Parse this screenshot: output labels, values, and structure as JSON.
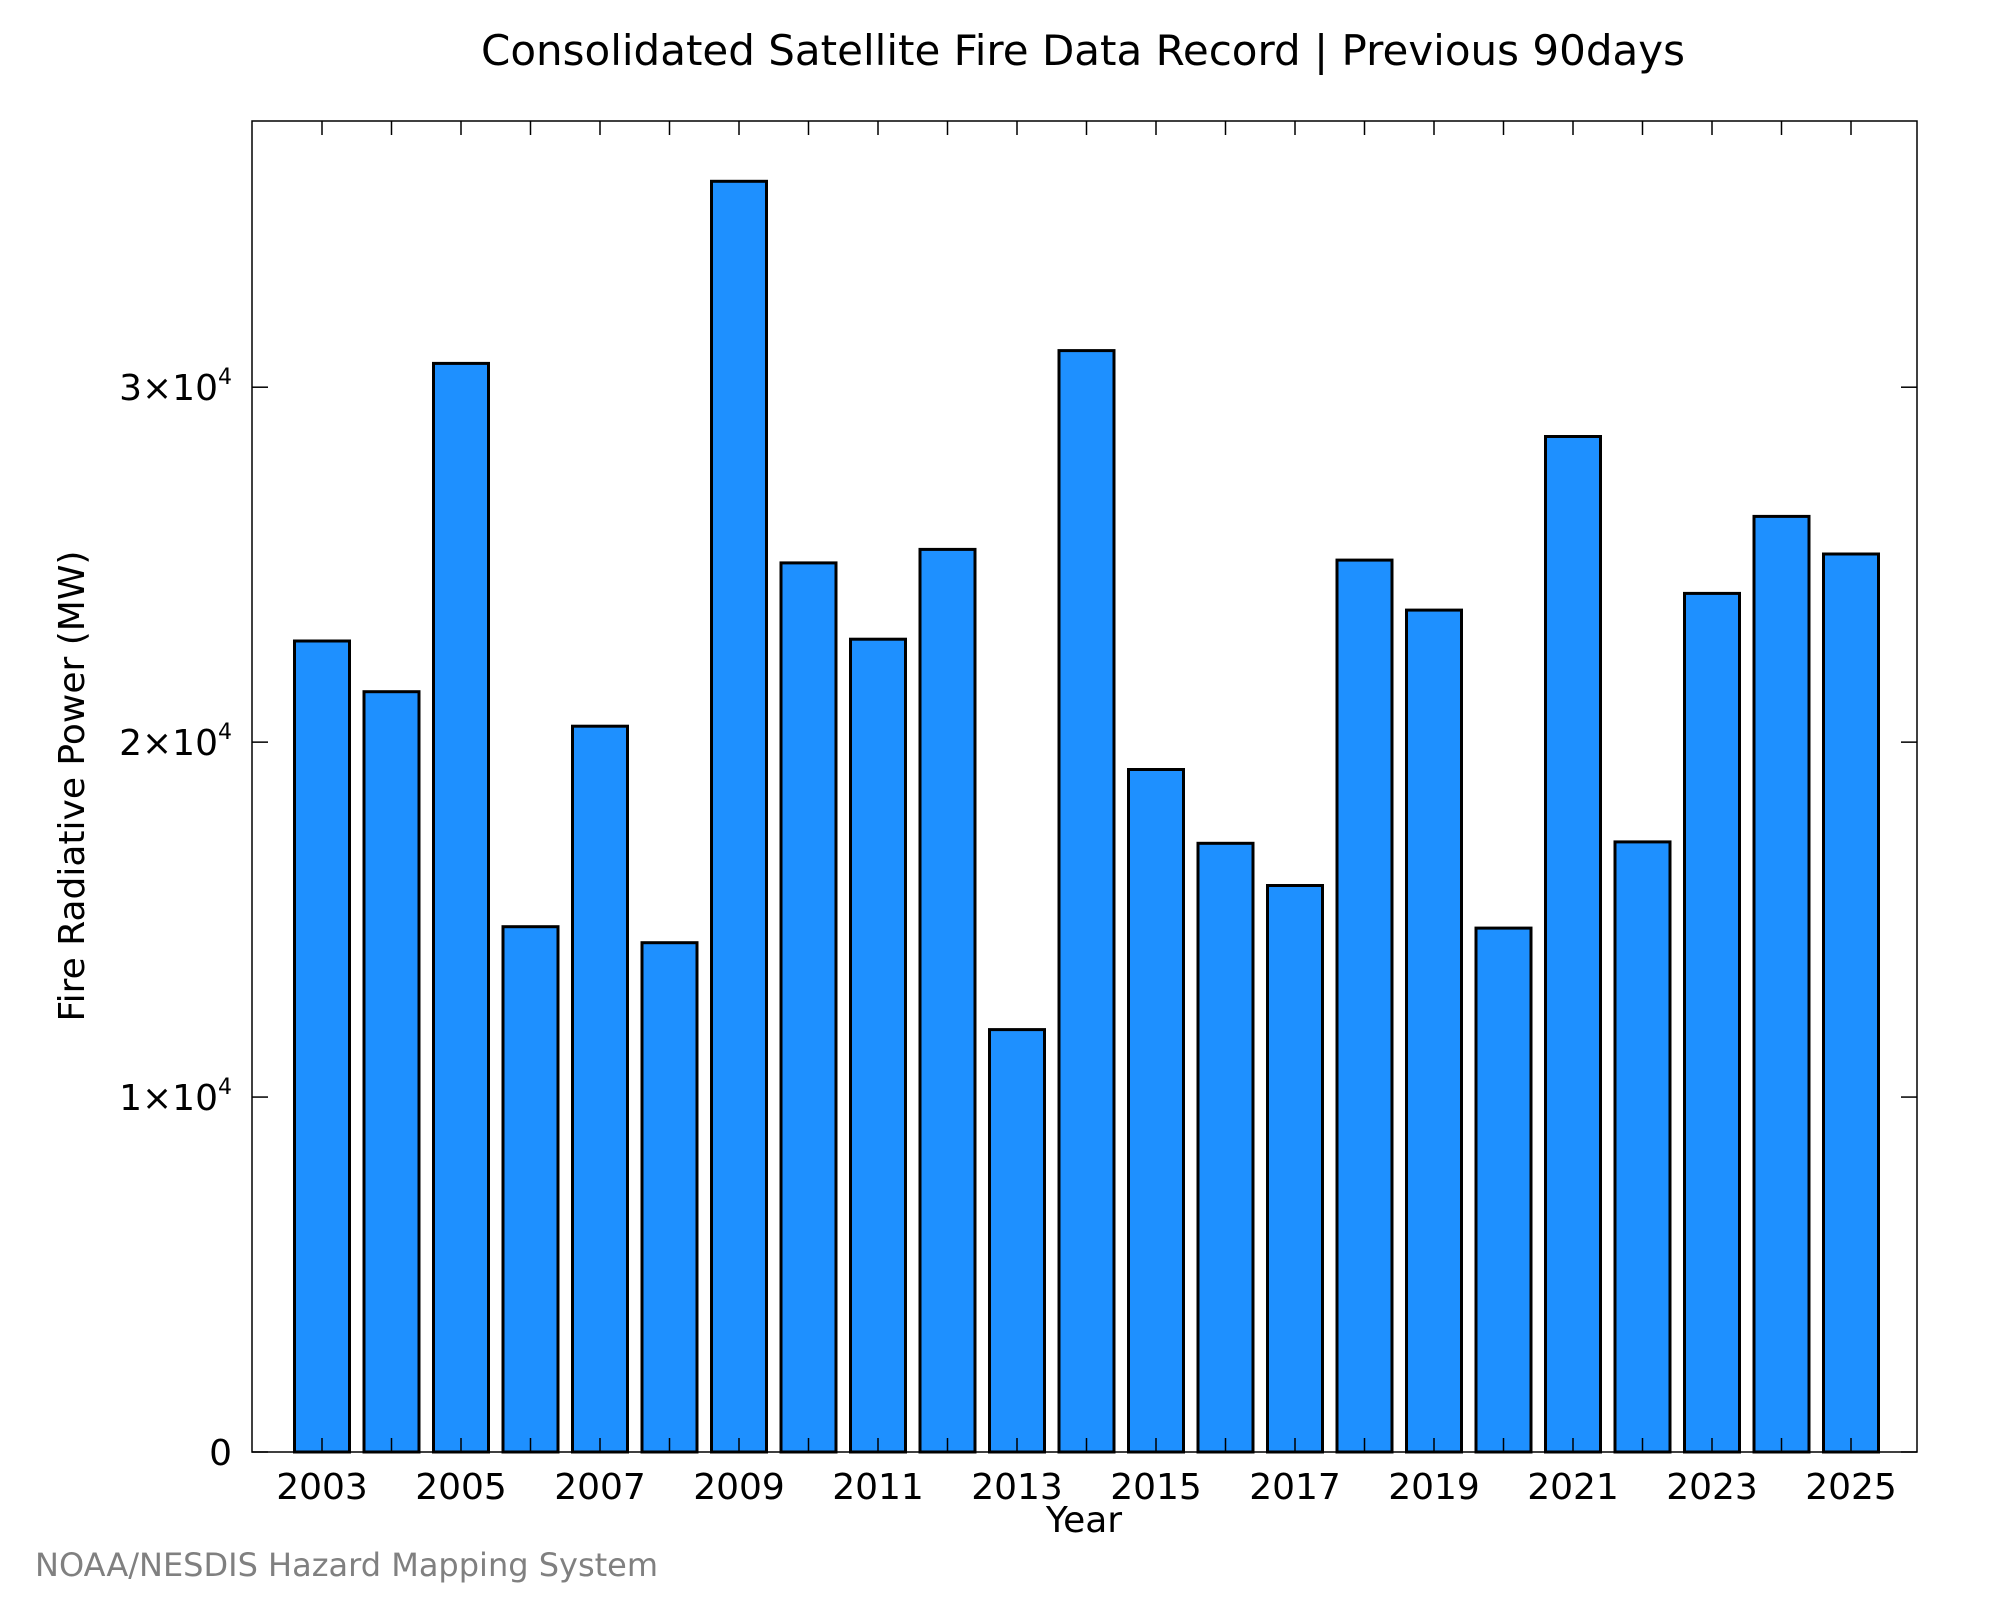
{
  "chart_data": {
    "type": "bar",
    "title": "Consolidated Satellite Fire Data Record | Previous 90days",
    "xlabel": "Year",
    "ylabel": "Fire Radiative Power (MW)",
    "credit": "NOAA/NESDIS Hazard Mapping System",
    "bar_color": "#1E90FF",
    "ylim": [
      0,
      37500
    ],
    "grid": false,
    "categories": [
      "2003",
      "2004",
      "2005",
      "2006",
      "2007",
      "2008",
      "2009",
      "2010",
      "2011",
      "2012",
      "2013",
      "2014",
      "2015",
      "2016",
      "2017",
      "2018",
      "2019",
      "2020",
      "2021",
      "2022",
      "2023",
      "2024",
      "2025"
    ],
    "values": [
      22850,
      21420,
      30670,
      14800,
      20450,
      14350,
      35800,
      25050,
      22900,
      25430,
      11900,
      31030,
      19230,
      17150,
      15960,
      25130,
      23720,
      14760,
      28610,
      17190,
      24190,
      26360,
      25300
    ],
    "x_tick_labels": [
      "2003",
      "2005",
      "2007",
      "2009",
      "2011",
      "2013",
      "2015",
      "2017",
      "2019",
      "2021",
      "2023",
      "2025"
    ],
    "y_ticks": [
      {
        "value": 0,
        "mantissa": "0",
        "exponent": ""
      },
      {
        "value": 10000,
        "mantissa": "1×10",
        "exponent": "4"
      },
      {
        "value": 20000,
        "mantissa": "2×10",
        "exponent": "4"
      },
      {
        "value": 30000,
        "mantissa": "3×10",
        "exponent": "4"
      }
    ]
  }
}
